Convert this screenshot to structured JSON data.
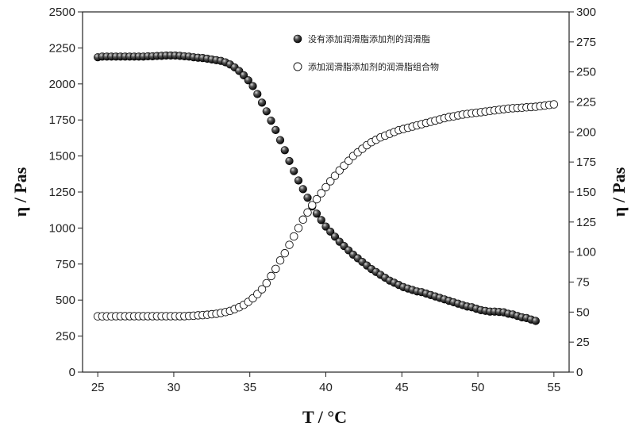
{
  "chart_data": {
    "type": "scatter",
    "xlabel": "T / °C",
    "ylabel_left": "η / Pas",
    "ylabel_right": "η / Pas",
    "xlim": [
      24,
      56
    ],
    "x_ticks": [
      25,
      30,
      35,
      40,
      45,
      50,
      55
    ],
    "ylim_left": [
      0,
      2500
    ],
    "y_ticks_left": [
      0,
      250,
      500,
      750,
      1000,
      1250,
      1500,
      1750,
      2000,
      2250,
      2500
    ],
    "ylim_right": [
      0,
      300
    ],
    "y_ticks_right": [
      0,
      25,
      50,
      75,
      100,
      125,
      150,
      175,
      200,
      225,
      250,
      275,
      300
    ],
    "grid": false,
    "legend_position": "top-right",
    "series": [
      {
        "name": "没有添加润滑脂添加剂的润滑脂",
        "axis": "left",
        "marker": "filled-circle",
        "x": [
          25.0,
          25.3,
          25.6,
          25.9,
          26.2,
          26.5,
          26.8,
          27.1,
          27.4,
          27.7,
          28.0,
          28.3,
          28.6,
          28.9,
          29.2,
          29.5,
          29.8,
          30.1,
          30.4,
          30.7,
          31.0,
          31.3,
          31.6,
          31.9,
          32.2,
          32.5,
          32.8,
          33.1,
          33.4,
          33.7,
          34.0,
          34.3,
          34.6,
          34.9,
          35.2,
          35.5,
          35.8,
          36.1,
          36.4,
          36.7,
          37.0,
          37.3,
          37.6,
          37.9,
          38.2,
          38.5,
          38.8,
          39.1,
          39.4,
          39.7,
          40.0,
          40.3,
          40.6,
          40.9,
          41.2,
          41.5,
          41.8,
          42.1,
          42.4,
          42.7,
          43.0,
          43.3,
          43.6,
          43.9,
          44.2,
          44.5,
          44.8,
          45.1,
          45.4,
          45.7,
          46.0,
          46.3,
          46.6,
          46.9,
          47.2,
          47.5,
          47.8,
          48.1,
          48.4,
          48.7,
          49.0,
          49.3,
          49.6,
          49.9,
          50.2,
          50.5,
          50.8,
          51.1,
          51.4,
          51.7,
          52.0,
          52.3,
          52.6,
          52.9,
          53.2,
          53.5,
          53.8
        ],
        "y": [
          2185,
          2190,
          2190,
          2190,
          2190,
          2190,
          2190,
          2190,
          2190,
          2190,
          2190,
          2192,
          2192,
          2194,
          2195,
          2197,
          2197,
          2197,
          2195,
          2192,
          2190,
          2185,
          2182,
          2180,
          2175,
          2170,
          2165,
          2160,
          2150,
          2135,
          2115,
          2090,
          2060,
          2025,
          1985,
          1930,
          1870,
          1810,
          1745,
          1680,
          1610,
          1540,
          1465,
          1395,
          1330,
          1270,
          1210,
          1150,
          1100,
          1055,
          1010,
          975,
          940,
          905,
          875,
          845,
          815,
          790,
          765,
          740,
          715,
          695,
          675,
          655,
          635,
          620,
          605,
          590,
          580,
          570,
          560,
          555,
          545,
          535,
          525,
          515,
          505,
          495,
          485,
          475,
          465,
          455,
          450,
          440,
          430,
          425,
          420,
          420,
          418,
          415,
          405,
          400,
          390,
          380,
          375,
          365,
          355
        ]
      },
      {
        "name": "添加润滑脂添加剂的润滑脂组合物",
        "axis": "right",
        "marker": "open-circle",
        "x": [
          25.0,
          25.3,
          25.6,
          25.9,
          26.2,
          26.5,
          26.8,
          27.1,
          27.4,
          27.7,
          28.0,
          28.3,
          28.6,
          28.9,
          29.2,
          29.5,
          29.8,
          30.1,
          30.4,
          30.7,
          31.0,
          31.3,
          31.6,
          31.9,
          32.2,
          32.5,
          32.8,
          33.1,
          33.4,
          33.7,
          34.0,
          34.3,
          34.6,
          34.9,
          35.2,
          35.5,
          35.8,
          36.1,
          36.4,
          36.7,
          37.0,
          37.3,
          37.6,
          37.9,
          38.2,
          38.5,
          38.8,
          39.1,
          39.4,
          39.7,
          40.0,
          40.3,
          40.6,
          40.9,
          41.2,
          41.5,
          41.8,
          42.1,
          42.4,
          42.7,
          43.0,
          43.3,
          43.6,
          43.9,
          44.2,
          44.5,
          44.8,
          45.1,
          45.4,
          45.7,
          46.0,
          46.3,
          46.6,
          46.9,
          47.2,
          47.5,
          47.8,
          48.1,
          48.4,
          48.7,
          49.0,
          49.3,
          49.6,
          49.9,
          50.2,
          50.5,
          50.8,
          51.1,
          51.4,
          51.7,
          52.0,
          52.3,
          52.6,
          52.9,
          53.2,
          53.5,
          53.8,
          54.1,
          54.4,
          54.7,
          55.0
        ],
        "y": [
          46.5,
          46.5,
          46.5,
          46.5,
          46.6,
          46.6,
          46.6,
          46.6,
          46.6,
          46.6,
          46.6,
          46.6,
          46.6,
          46.6,
          46.6,
          46.6,
          46.6,
          46.6,
          46.6,
          46.6,
          46.8,
          47.0,
          47.3,
          47.5,
          47.8,
          48.2,
          48.6,
          49.3,
          50.0,
          51.0,
          52.5,
          54.0,
          56.0,
          58.5,
          61.5,
          65.0,
          69.0,
          74.0,
          80.0,
          86.0,
          93.0,
          99.0,
          106.0,
          113.0,
          120.0,
          127.0,
          133.0,
          139.0,
          144.0,
          149.0,
          154.0,
          159.0,
          163.5,
          168.0,
          172.0,
          176.0,
          180.0,
          183.0,
          186.0,
          189.0,
          191.5,
          193.5,
          195.5,
          197.0,
          198.5,
          200.0,
          201.5,
          202.5,
          203.5,
          204.5,
          205.5,
          206.5,
          207.5,
          208.5,
          209.5,
          210.5,
          211.5,
          212.5,
          213.0,
          213.8,
          214.5,
          215.0,
          215.6,
          216.0,
          216.5,
          217.0,
          217.5,
          218.0,
          218.5,
          219.0,
          219.5,
          219.8,
          220.0,
          220.2,
          220.5,
          220.8,
          221.0,
          221.5,
          222.0,
          222.5,
          223.0
        ]
      }
    ]
  }
}
